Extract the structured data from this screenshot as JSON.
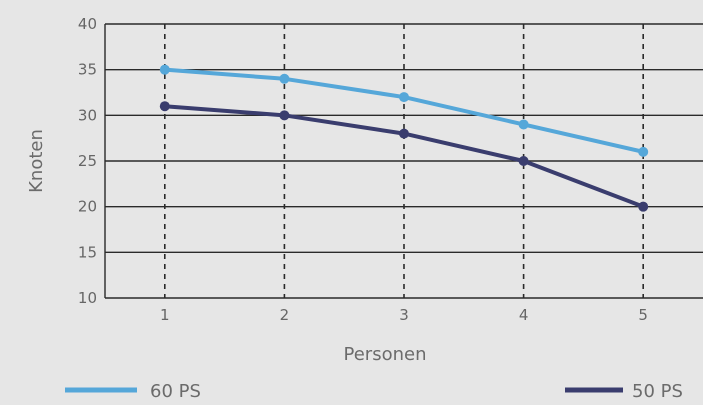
{
  "chart_data": {
    "type": "line",
    "title": "",
    "xlabel": "Personen",
    "ylabel": "Knoten",
    "categories": [
      "1",
      "2",
      "3",
      "4",
      "5"
    ],
    "x": [
      1,
      2,
      3,
      4,
      5
    ],
    "xlim": [
      0.5,
      5.5
    ],
    "ylim": [
      10,
      40
    ],
    "yticks": [
      10,
      15,
      20,
      25,
      30,
      35,
      40
    ],
    "grid": {
      "horizontal": "solid",
      "vertical": "dashed"
    },
    "legend_position": "bottom",
    "series": [
      {
        "name": "60 PS",
        "values": [
          35,
          34,
          32,
          29,
          26
        ],
        "color": "#55a7d9"
      },
      {
        "name": "50 PS",
        "values": [
          31,
          30,
          28,
          25,
          20
        ],
        "color": "#3a3d6e"
      }
    ]
  },
  "colors": {
    "background": "#e6e6e6",
    "plot_background": "#e6e6e6",
    "grid": "#2a2a2a",
    "text": "#6b6b6b"
  }
}
